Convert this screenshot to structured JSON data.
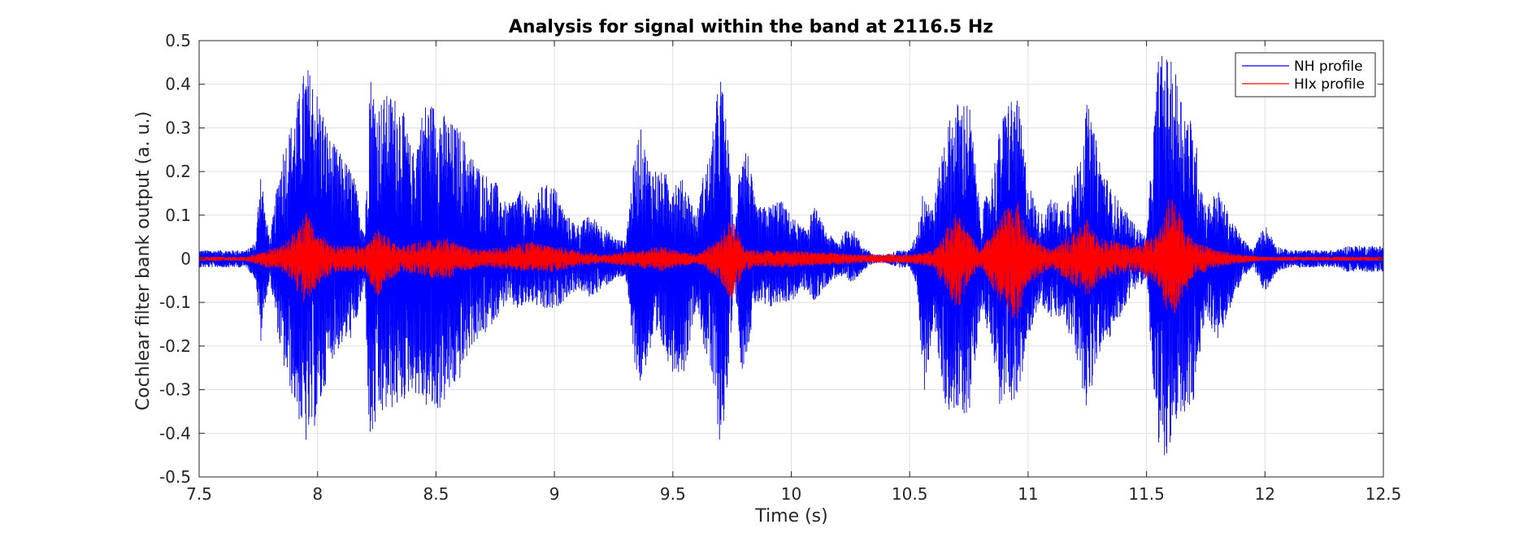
{
  "chart_data": {
    "type": "line",
    "title": "Analysis for signal within the band at 2116.5 Hz",
    "xlabel": "Time (s)",
    "ylabel": "Cochlear filter bank output (a. u.)",
    "xlim": [
      7.5,
      12.5
    ],
    "ylim": [
      -0.5,
      0.5
    ],
    "xticks": [
      7.5,
      8,
      8.5,
      9,
      9.5,
      10,
      10.5,
      11,
      11.5,
      12,
      12.5
    ],
    "xtick_labels": [
      "7.5",
      "8",
      "8.5",
      "9",
      "9.5",
      "10",
      "10.5",
      "11",
      "11.5",
      "12",
      "12.5"
    ],
    "yticks": [
      -0.5,
      -0.4,
      -0.3,
      -0.2,
      -0.1,
      0,
      0.1,
      0.2,
      0.3,
      0.4,
      0.5
    ],
    "ytick_labels": [
      "-0.5",
      "-0.4",
      "-0.3",
      "-0.2",
      "-0.1",
      "0",
      "0.1",
      "0.2",
      "0.3",
      "0.4",
      "0.5"
    ],
    "grid": true,
    "legend_position": "top-right",
    "series": [
      {
        "name": "NH profile",
        "color": "#0000ff",
        "envelope": {
          "t": [
            7.5,
            7.55,
            7.6,
            7.65,
            7.7,
            7.74,
            7.76,
            7.78,
            7.8,
            7.85,
            7.9,
            7.95,
            7.98,
            8.02,
            8.05,
            8.1,
            8.15,
            8.2,
            8.22,
            8.25,
            8.3,
            8.35,
            8.4,
            8.45,
            8.5,
            8.55,
            8.6,
            8.65,
            8.7,
            8.75,
            8.8,
            8.85,
            8.9,
            8.95,
            9.0,
            9.05,
            9.1,
            9.15,
            9.2,
            9.25,
            9.3,
            9.33,
            9.36,
            9.4,
            9.45,
            9.5,
            9.55,
            9.6,
            9.63,
            9.66,
            9.7,
            9.73,
            9.76,
            9.79,
            9.82,
            9.85,
            9.9,
            9.95,
            10.0,
            10.05,
            10.1,
            10.15,
            10.2,
            10.25,
            10.3,
            10.35,
            10.4,
            10.45,
            10.5,
            10.53,
            10.56,
            10.6,
            10.65,
            10.7,
            10.75,
            10.8,
            10.85,
            10.88,
            10.92,
            10.96,
            11.0,
            11.05,
            11.1,
            11.15,
            11.2,
            11.25,
            11.3,
            11.35,
            11.4,
            11.45,
            11.5,
            11.55,
            11.58,
            11.62,
            11.66,
            11.7,
            11.75,
            11.8,
            11.85,
            11.9,
            11.95,
            12.0,
            12.05,
            12.1,
            12.15,
            12.2,
            12.25,
            12.3,
            12.35,
            12.4,
            12.45,
            12.5
          ],
          "pos": [
            0.02,
            0.02,
            0.02,
            0.02,
            0.02,
            0.04,
            0.23,
            0.1,
            0.05,
            0.25,
            0.33,
            0.45,
            0.42,
            0.35,
            0.28,
            0.24,
            0.2,
            0.06,
            0.44,
            0.36,
            0.38,
            0.37,
            0.24,
            0.36,
            0.36,
            0.32,
            0.3,
            0.24,
            0.2,
            0.18,
            0.12,
            0.16,
            0.12,
            0.17,
            0.17,
            0.1,
            0.08,
            0.1,
            0.08,
            0.05,
            0.04,
            0.2,
            0.31,
            0.22,
            0.2,
            0.19,
            0.18,
            0.1,
            0.2,
            0.25,
            0.44,
            0.3,
            0.04,
            0.3,
            0.24,
            0.12,
            0.12,
            0.14,
            0.1,
            0.07,
            0.12,
            0.06,
            0.04,
            0.08,
            0.03,
            0.01,
            0.01,
            0.02,
            0.02,
            0.06,
            0.17,
            0.12,
            0.3,
            0.36,
            0.37,
            0.1,
            0.2,
            0.3,
            0.38,
            0.36,
            0.18,
            0.1,
            0.14,
            0.12,
            0.2,
            0.36,
            0.24,
            0.16,
            0.12,
            0.08,
            0.05,
            0.47,
            0.47,
            0.44,
            0.36,
            0.3,
            0.12,
            0.16,
            0.1,
            0.05,
            0.02,
            0.08,
            0.03,
            0.02,
            0.02,
            0.02,
            0.02,
            0.02,
            0.03,
            0.03,
            0.03,
            0.03
          ],
          "neg": [
            -0.02,
            -0.02,
            -0.02,
            -0.02,
            -0.02,
            -0.05,
            -0.2,
            -0.1,
            -0.05,
            -0.24,
            -0.33,
            -0.43,
            -0.4,
            -0.33,
            -0.24,
            -0.2,
            -0.18,
            -0.06,
            -0.45,
            -0.38,
            -0.35,
            -0.34,
            -0.3,
            -0.34,
            -0.36,
            -0.32,
            -0.28,
            -0.2,
            -0.18,
            -0.14,
            -0.1,
            -0.12,
            -0.1,
            -0.12,
            -0.12,
            -0.09,
            -0.07,
            -0.09,
            -0.07,
            -0.05,
            -0.04,
            -0.21,
            -0.3,
            -0.22,
            -0.2,
            -0.26,
            -0.26,
            -0.1,
            -0.2,
            -0.27,
            -0.43,
            -0.32,
            -0.04,
            -0.26,
            -0.2,
            -0.1,
            -0.12,
            -0.1,
            -0.1,
            -0.07,
            -0.1,
            -0.06,
            -0.04,
            -0.06,
            -0.03,
            -0.01,
            -0.01,
            -0.02,
            -0.02,
            -0.06,
            -0.32,
            -0.15,
            -0.34,
            -0.36,
            -0.36,
            -0.12,
            -0.2,
            -0.34,
            -0.32,
            -0.34,
            -0.18,
            -0.1,
            -0.14,
            -0.14,
            -0.22,
            -0.35,
            -0.22,
            -0.18,
            -0.12,
            -0.07,
            -0.05,
            -0.49,
            -0.45,
            -0.44,
            -0.36,
            -0.34,
            -0.12,
            -0.2,
            -0.12,
            -0.05,
            -0.02,
            -0.08,
            -0.03,
            -0.02,
            -0.02,
            -0.02,
            -0.02,
            -0.02,
            -0.03,
            -0.03,
            -0.03,
            -0.03
          ]
        }
      },
      {
        "name": "HIx profile",
        "color": "#ff0000",
        "envelope": {
          "t": [
            7.5,
            7.7,
            7.78,
            7.85,
            7.9,
            7.95,
            8.0,
            8.05,
            8.1,
            8.2,
            8.25,
            8.3,
            8.35,
            8.45,
            8.55,
            8.6,
            8.7,
            8.9,
            9.0,
            9.2,
            9.35,
            9.45,
            9.6,
            9.7,
            9.75,
            9.8,
            9.85,
            10.0,
            10.3,
            10.5,
            10.6,
            10.7,
            10.75,
            10.8,
            10.9,
            10.95,
            11.0,
            11.1,
            11.25,
            11.3,
            11.45,
            11.55,
            11.6,
            11.65,
            11.7,
            11.8,
            11.9,
            12.0,
            12.5
          ],
          "pos": [
            0.005,
            0.005,
            0.02,
            0.03,
            0.06,
            0.11,
            0.06,
            0.04,
            0.03,
            0.03,
            0.07,
            0.05,
            0.03,
            0.04,
            0.05,
            0.03,
            0.02,
            0.04,
            0.03,
            0.01,
            0.02,
            0.03,
            0.01,
            0.05,
            0.1,
            0.03,
            0.02,
            0.02,
            0.01,
            0.01,
            0.02,
            0.11,
            0.06,
            0.02,
            0.11,
            0.14,
            0.06,
            0.02,
            0.09,
            0.05,
            0.03,
            0.06,
            0.15,
            0.1,
            0.04,
            0.02,
            0.01,
            0.005,
            0.005
          ],
          "neg": [
            -0.005,
            -0.005,
            -0.02,
            -0.03,
            -0.06,
            -0.11,
            -0.06,
            -0.04,
            -0.03,
            -0.03,
            -0.09,
            -0.05,
            -0.03,
            -0.04,
            -0.05,
            -0.03,
            -0.02,
            -0.03,
            -0.03,
            -0.01,
            -0.02,
            -0.03,
            -0.01,
            -0.05,
            -0.1,
            -0.03,
            -0.02,
            -0.02,
            -0.01,
            -0.01,
            -0.02,
            -0.12,
            -0.06,
            -0.02,
            -0.12,
            -0.15,
            -0.06,
            -0.02,
            -0.09,
            -0.05,
            -0.03,
            -0.06,
            -0.15,
            -0.1,
            -0.04,
            -0.02,
            -0.01,
            -0.005,
            -0.005
          ]
        }
      }
    ]
  }
}
